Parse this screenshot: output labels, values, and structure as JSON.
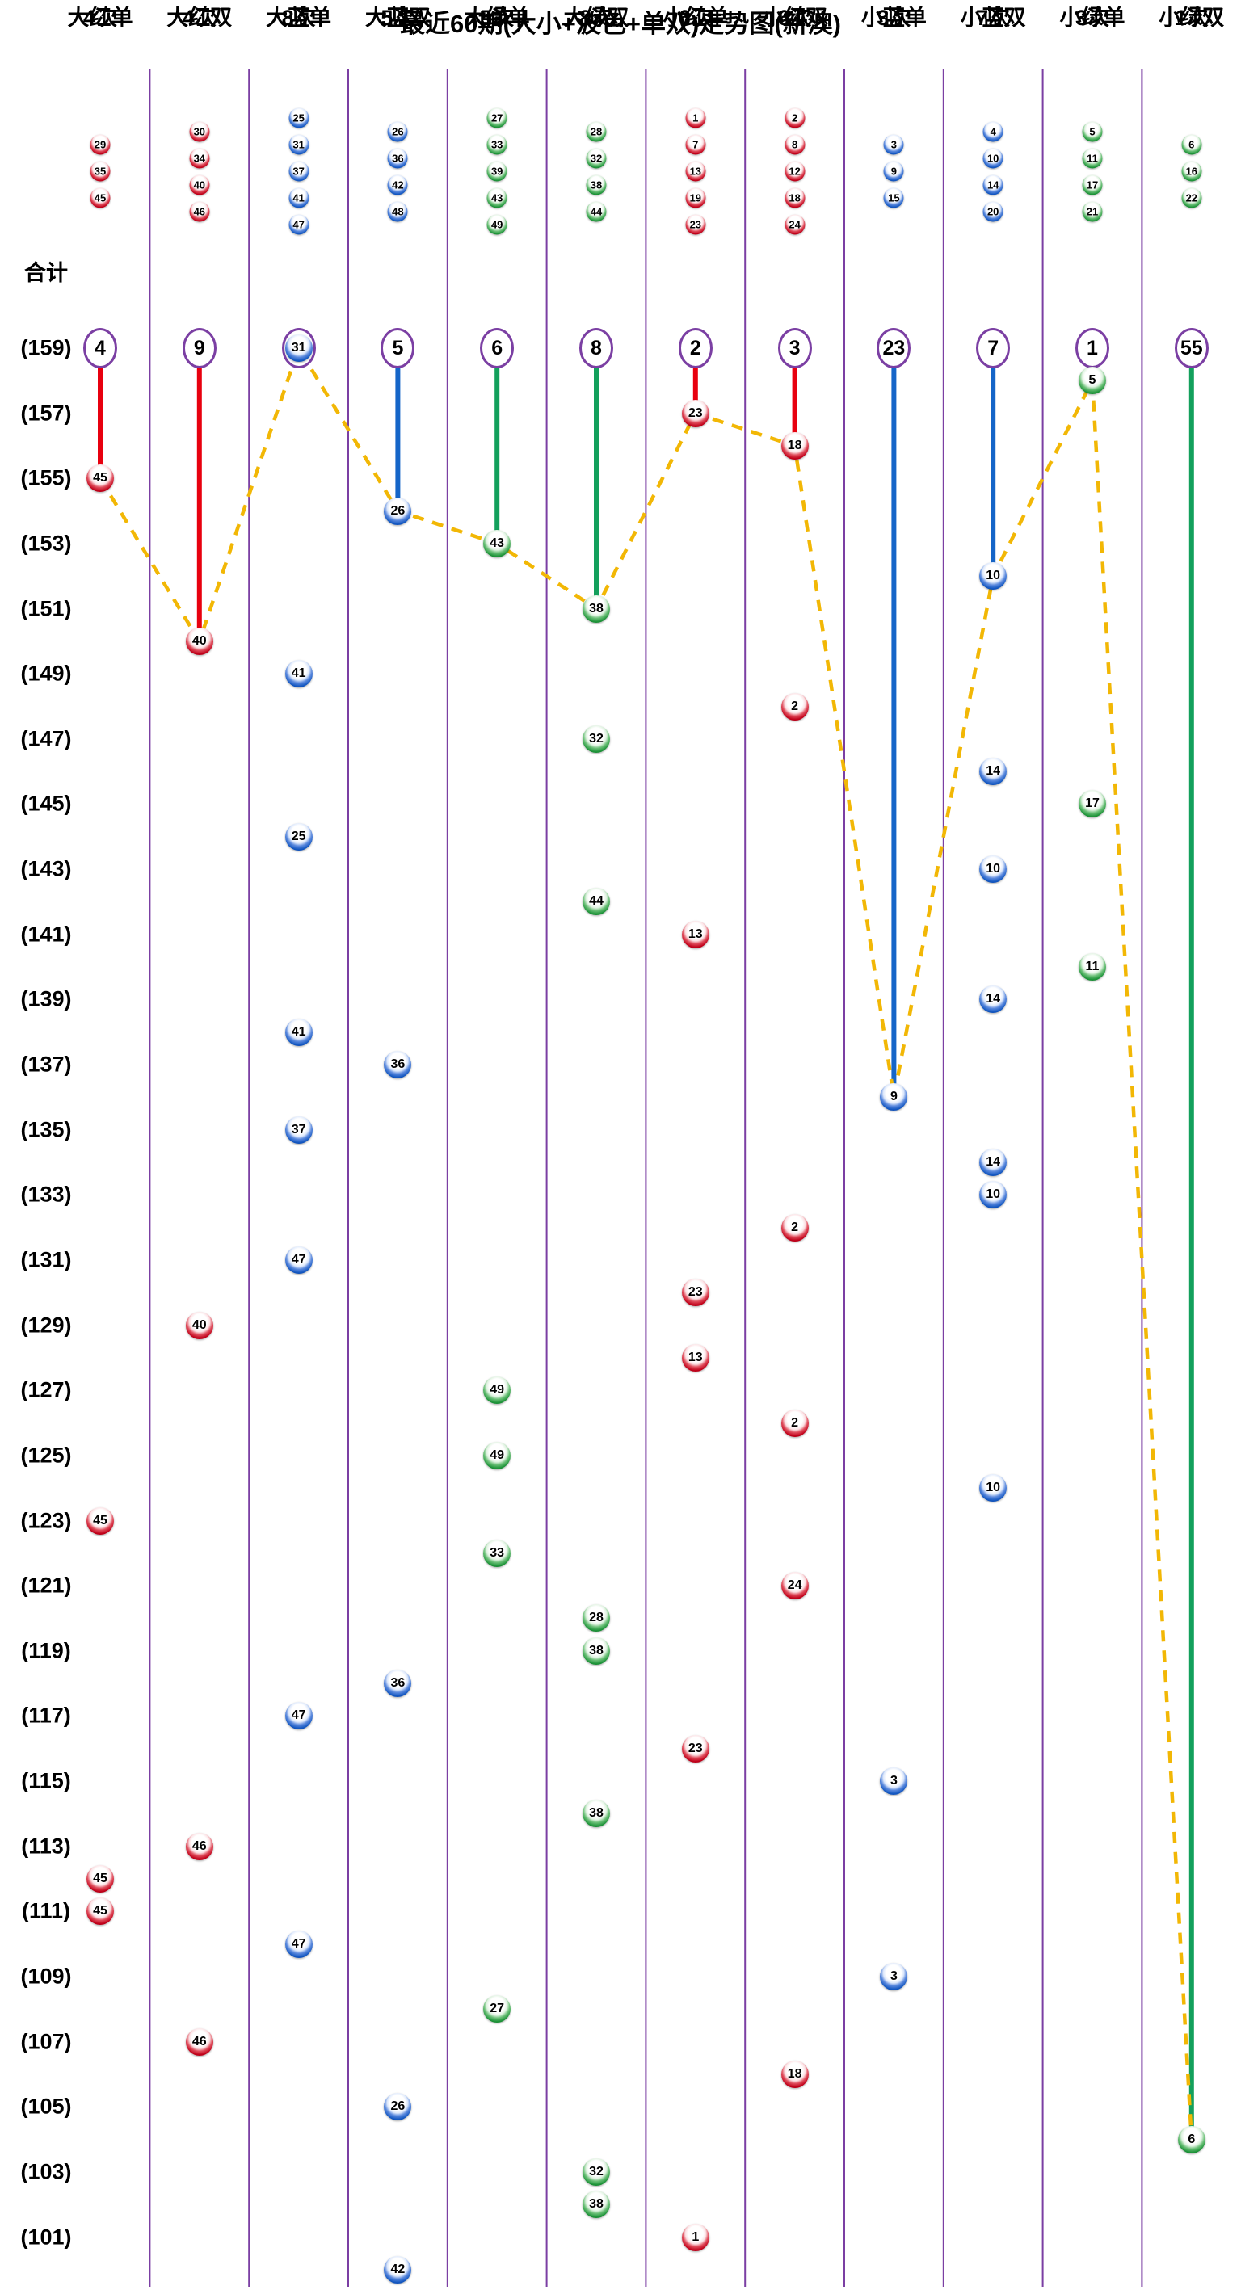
{
  "title": "最近60期(大小+波色+单双)走势图(新澳)",
  "totals_label": "合计",
  "colors": {
    "red": "#e8000f",
    "blue": "#1565c8",
    "green": "#13a05c",
    "divider": "#7b3fa3",
    "circle_border": "#7b3fa3",
    "trend": "#f2b705"
  },
  "row_axis": {
    "top_label": 159,
    "bottom_label": 101,
    "label_step": 2,
    "label_format": "(N)"
  },
  "chart_data": {
    "type": "lottery-trend",
    "title": "最近60期(大小+波色+单双)走势图(新澳)",
    "columns": [
      {
        "label": "大红单",
        "color": "red",
        "member_balls": [
          29,
          35,
          45
        ],
        "total": "4次",
        "miss_circle": "4",
        "line_to_row": 155,
        "occurrences": [
          {
            "row": 155,
            "ball": 45
          },
          {
            "row": 123,
            "ball": 45
          },
          {
            "row": 112,
            "ball": 45
          },
          {
            "row": 111,
            "ball": 45
          }
        ]
      },
      {
        "label": "大红双",
        "color": "red",
        "member_balls": [
          30,
          34,
          40,
          46
        ],
        "total": "4次",
        "miss_circle": "9",
        "line_to_row": 150,
        "occurrences": [
          {
            "row": 150,
            "ball": 40
          },
          {
            "row": 129,
            "ball": 40
          },
          {
            "row": 113,
            "ball": 46
          },
          {
            "row": 107,
            "ball": 46
          }
        ]
      },
      {
        "label": "大蓝单",
        "color": "blue",
        "member_balls": [
          25,
          31,
          37,
          41,
          47
        ],
        "total": "8次",
        "miss_circle": "31",
        "line_to_row": null,
        "occurrences": [
          {
            "row": 159,
            "ball": 31
          },
          {
            "row": 149,
            "ball": 41
          },
          {
            "row": 144,
            "ball": 25
          },
          {
            "row": 138,
            "ball": 41
          },
          {
            "row": 135,
            "ball": 37
          },
          {
            "row": 131,
            "ball": 47
          },
          {
            "row": 117,
            "ball": 47
          },
          {
            "row": 110,
            "ball": 47
          }
        ]
      },
      {
        "label": "大蓝双",
        "color": "blue",
        "member_balls": [
          26,
          36,
          42,
          48
        ],
        "total": "5次",
        "miss_circle": "5",
        "line_to_row": 154,
        "occurrences": [
          {
            "row": 154,
            "ball": 26
          },
          {
            "row": 137,
            "ball": 36
          },
          {
            "row": 118,
            "ball": 36
          },
          {
            "row": 105,
            "ball": 26
          },
          {
            "row": 100,
            "ball": 42
          }
        ]
      },
      {
        "label": "大绿单",
        "color": "green",
        "member_balls": [
          27,
          33,
          39,
          43,
          49
        ],
        "total": "5次",
        "miss_circle": "6",
        "line_to_row": 153,
        "occurrences": [
          {
            "row": 153,
            "ball": 43
          },
          {
            "row": 127,
            "ball": 49
          },
          {
            "row": 125,
            "ball": 49
          },
          {
            "row": 122,
            "ball": 33
          },
          {
            "row": 108,
            "ball": 27
          }
        ]
      },
      {
        "label": "大绿双",
        "color": "green",
        "member_balls": [
          28,
          32,
          38,
          44
        ],
        "total": "8次",
        "miss_circle": "8",
        "line_to_row": 151,
        "occurrences": [
          {
            "row": 151,
            "ball": 38
          },
          {
            "row": 147,
            "ball": 32
          },
          {
            "row": 142,
            "ball": 44
          },
          {
            "row": 120,
            "ball": 28
          },
          {
            "row": 119,
            "ball": 38
          },
          {
            "row": 114,
            "ball": 38
          },
          {
            "row": 103,
            "ball": 32
          },
          {
            "row": 102,
            "ball": 38
          }
        ]
      },
      {
        "label": "小红单",
        "color": "red",
        "member_balls": [
          1,
          7,
          13,
          19,
          23
        ],
        "total": "6次",
        "miss_circle": "2",
        "line_to_row": 157,
        "occurrences": [
          {
            "row": 157,
            "ball": 23
          },
          {
            "row": 141,
            "ball": 13
          },
          {
            "row": 130,
            "ball": 23
          },
          {
            "row": 128,
            "ball": 13
          },
          {
            "row": 116,
            "ball": 23
          },
          {
            "row": 101,
            "ball": 1
          }
        ]
      },
      {
        "label": "小红双",
        "color": "red",
        "member_balls": [
          2,
          8,
          12,
          18,
          24
        ],
        "total": "6次",
        "miss_circle": "3",
        "line_to_row": 156,
        "occurrences": [
          {
            "row": 156,
            "ball": 18
          },
          {
            "row": 148,
            "ball": 2
          },
          {
            "row": 132,
            "ball": 2
          },
          {
            "row": 126,
            "ball": 2
          },
          {
            "row": 121,
            "ball": 24
          },
          {
            "row": 106,
            "ball": 18
          }
        ]
      },
      {
        "label": "小蓝单",
        "color": "blue",
        "member_balls": [
          3,
          9,
          15
        ],
        "total": "3次",
        "miss_circle": "23",
        "line_to_row": 136,
        "occurrences": [
          {
            "row": 136,
            "ball": 9
          },
          {
            "row": 115,
            "ball": 3
          },
          {
            "row": 109,
            "ball": 3
          }
        ]
      },
      {
        "label": "小蓝双",
        "color": "blue",
        "member_balls": [
          4,
          10,
          14,
          20
        ],
        "total": "7次",
        "miss_circle": "7",
        "line_to_row": 152,
        "occurrences": [
          {
            "row": 152,
            "ball": 10
          },
          {
            "row": 146,
            "ball": 14
          },
          {
            "row": 143,
            "ball": 10
          },
          {
            "row": 139,
            "ball": 14
          },
          {
            "row": 134,
            "ball": 14
          },
          {
            "row": 133,
            "ball": 10
          },
          {
            "row": 124,
            "ball": 10
          }
        ]
      },
      {
        "label": "小绿单",
        "color": "green",
        "member_balls": [
          5,
          11,
          17,
          21
        ],
        "total": "3次",
        "miss_circle": "1",
        "line_to_row": 158,
        "occurrences": [
          {
            "row": 158,
            "ball": 5
          },
          {
            "row": 145,
            "ball": 17
          },
          {
            "row": 140,
            "ball": 11
          }
        ]
      },
      {
        "label": "小绿双",
        "color": "green",
        "member_balls": [
          6,
          16,
          22
        ],
        "total": "1次",
        "miss_circle": "55",
        "line_to_row": 104,
        "occurrences": [
          {
            "row": 104,
            "ball": 6
          }
        ]
      }
    ],
    "trend_points": [
      {
        "col": 1,
        "row": 155
      },
      {
        "col": 2,
        "row": 150
      },
      {
        "col": 3,
        "row": 159
      },
      {
        "col": 4,
        "row": 154
      },
      {
        "col": 5,
        "row": 153
      },
      {
        "col": 6,
        "row": 151
      },
      {
        "col": 7,
        "row": 157
      },
      {
        "col": 8,
        "row": 156
      },
      {
        "col": 9,
        "row": 136
      },
      {
        "col": 10,
        "row": 152
      },
      {
        "col": 11,
        "row": 158
      },
      {
        "col": 12,
        "row": 104
      }
    ]
  }
}
